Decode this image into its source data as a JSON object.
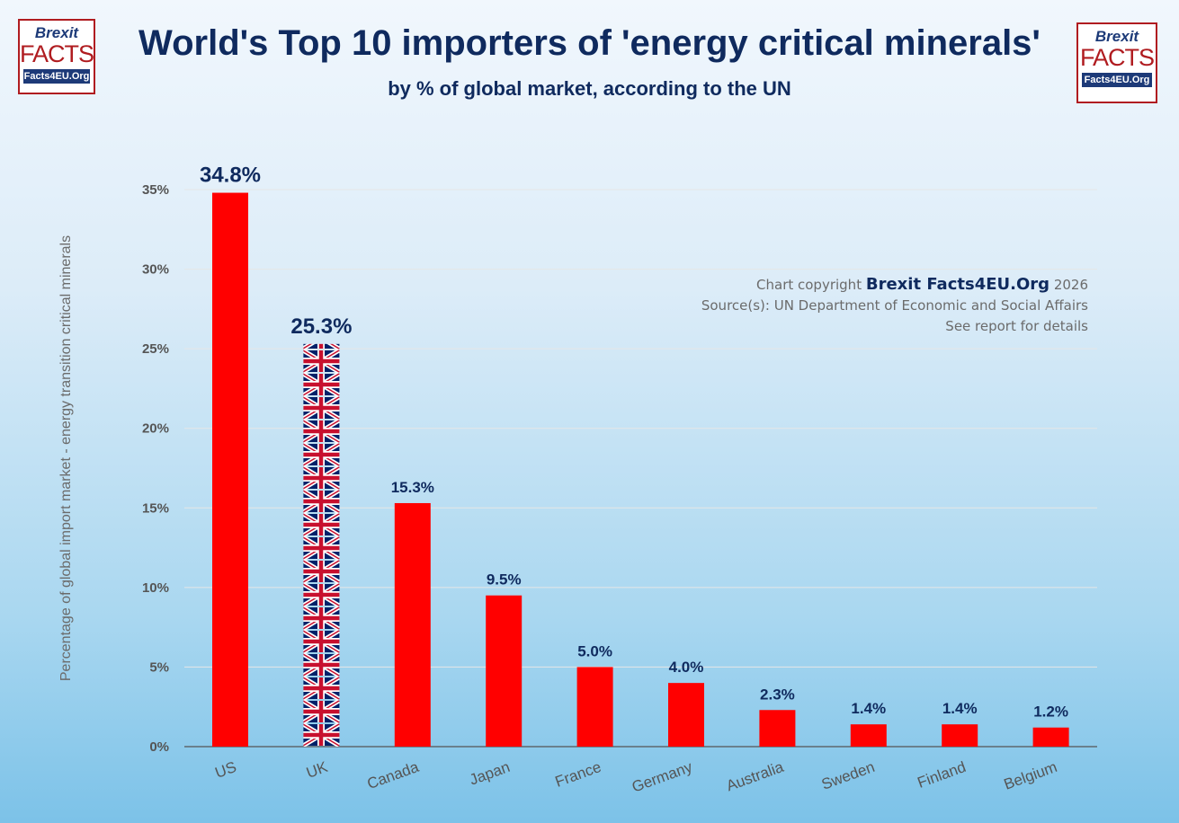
{
  "title": "World's Top 10 importers of 'energy critical minerals'",
  "subtitle": "by % of global market, according to the UN",
  "logo": {
    "line1": "Brexit",
    "line2": "FACTS",
    "line3": "Facts4EU.Org"
  },
  "credits": {
    "prefix": "Chart copyright",
    "brand": "Brexit Facts4EU.Org",
    "year": "2026",
    "source": "Source(s): UN Department of Economic and Social Affairs",
    "note": "See report for details"
  },
  "chart_data": {
    "type": "bar",
    "title": "World's Top 10 importers of 'energy critical minerals'",
    "ylabel": "Percentage of global import market - energy transition critical minerals",
    "xlabel": "",
    "categories": [
      "US",
      "UK",
      "Canada",
      "Japan",
      "France",
      "Germany",
      "Australia",
      "Sweden",
      "Finland",
      "Belgium"
    ],
    "values": [
      34.8,
      25.3,
      15.3,
      9.5,
      5.0,
      4.0,
      2.3,
      1.4,
      1.4,
      1.2
    ],
    "data_labels": [
      "34.8%",
      "25.3%",
      "15.3%",
      "9.5%",
      "5.0%",
      "4.0%",
      "2.3%",
      "1.4%",
      "1.4%",
      "1.2%"
    ],
    "ylim": [
      0,
      35
    ],
    "yticks": [
      "0%",
      "5%",
      "10%",
      "15%",
      "20%",
      "25%",
      "30%",
      "35%"
    ],
    "grid": true,
    "colors": {
      "bar": "#ff0000",
      "label": "#0f2a5e",
      "highlight_pattern": "union-flag",
      "highlight_category": "UK"
    }
  }
}
